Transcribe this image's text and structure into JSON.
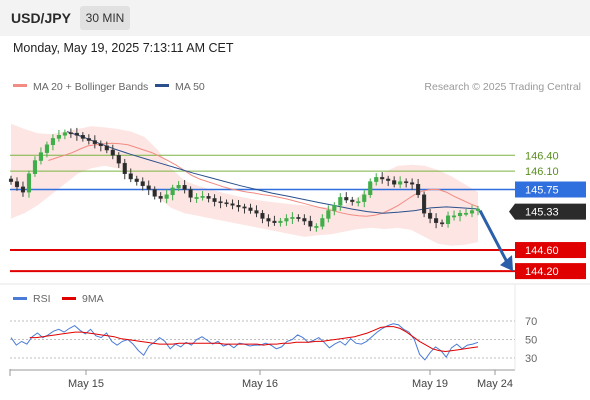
{
  "header": {
    "pair": "USD/JPY",
    "timeframe": "30 MIN",
    "datetime": "Monday, May 19, 2025 7:13:11 AM CET"
  },
  "legend": {
    "ma20_label": "MA 20 + Bollinger Bands",
    "ma50_label": "MA 50",
    "ma20_color": "#f28b82",
    "ma50_color": "#2a4f8c",
    "credit": "Research © 2025 Trading Central"
  },
  "rsi_legend": {
    "rsi_label": "RSI",
    "ma_label": "9MA",
    "rsi_color": "#4a7bd6",
    "ma_color": "#e00000"
  },
  "chart_data": {
    "type": "candlestick",
    "price_range": [
      144.05,
      147.45
    ],
    "x_labels": [
      "May 15",
      "May 16",
      "May 19",
      "May 24"
    ],
    "levels": [
      {
        "value": 146.4,
        "label": "146.40",
        "kind": "resistance",
        "color": "#7cb342"
      },
      {
        "value": 146.1,
        "label": "146.10",
        "kind": "resistance",
        "color": "#7cb342"
      },
      {
        "value": 145.75,
        "label": "145.75",
        "kind": "pivot",
        "color": "#2f6fde"
      },
      {
        "value": 144.6,
        "label": "144.60",
        "kind": "support",
        "color": "#e00000"
      },
      {
        "value": 144.2,
        "label": "144.20",
        "kind": "support",
        "color": "#e00000"
      }
    ],
    "last_price": {
      "value": 145.33,
      "label": "145.33"
    },
    "closes": [
      145.9,
      145.8,
      145.7,
      146.05,
      146.3,
      146.45,
      146.6,
      146.72,
      146.78,
      146.83,
      146.82,
      146.78,
      146.72,
      146.68,
      146.62,
      146.58,
      146.5,
      146.4,
      146.25,
      146.05,
      145.95,
      145.9,
      145.82,
      145.75,
      145.62,
      145.58,
      145.65,
      145.78,
      145.83,
      145.75,
      145.6,
      145.6,
      145.62,
      145.58,
      145.52,
      145.5,
      145.48,
      145.45,
      145.42,
      145.4,
      145.35,
      145.3,
      145.2,
      145.15,
      145.12,
      145.15,
      145.2,
      145.22,
      145.2,
      145.15,
      145.05,
      145.05,
      145.2,
      145.35,
      145.45,
      145.6,
      145.55,
      145.52,
      145.52,
      145.65,
      145.9,
      145.98,
      145.95,
      145.92,
      145.85,
      145.9,
      145.88,
      145.85,
      145.65,
      145.3,
      145.2,
      145.12,
      145.1,
      145.25,
      145.25,
      145.3,
      145.3,
      145.35,
      145.38
    ],
    "ma20": [
      146.3,
      146.35,
      146.4,
      146.45,
      146.52,
      146.58,
      146.6,
      146.62,
      146.63,
      146.62,
      146.6,
      146.55,
      146.5,
      146.45,
      146.38,
      146.3,
      146.22,
      146.12,
      146.02,
      145.95,
      145.9,
      145.85,
      145.8,
      145.76,
      145.73,
      145.7,
      145.68,
      145.65,
      145.63,
      145.6,
      145.57,
      145.53,
      145.49,
      145.45,
      145.41,
      145.38,
      145.34,
      145.3,
      145.27,
      145.25,
      145.24,
      145.26,
      145.3,
      145.37,
      145.45,
      145.55,
      145.65,
      145.72,
      145.75,
      145.75,
      145.7,
      145.62,
      145.55,
      145.48,
      145.42
    ],
    "ma20_start": 0.08,
    "ma20_end": 1.0,
    "ma50": [
      146.85,
      146.75,
      146.63,
      146.52,
      146.42,
      146.33,
      146.24,
      146.15,
      146.06,
      145.98,
      145.9,
      145.82,
      145.75,
      145.68,
      145.62,
      145.56,
      145.5,
      145.44,
      145.38,
      145.33,
      145.3,
      145.32,
      145.35,
      145.4,
      145.42,
      145.4,
      145.38
    ],
    "bb_upper": [
      147.0,
      146.9,
      146.82,
      146.8,
      146.85,
      146.9,
      146.95,
      146.93,
      146.9,
      146.85,
      146.75,
      146.5,
      146.15,
      145.92,
      145.82,
      145.75,
      145.68,
      145.62,
      145.57,
      145.53,
      145.5,
      145.47,
      145.45,
      145.42,
      145.41,
      145.45,
      145.6,
      145.85,
      146.08,
      146.2,
      146.22,
      146.2,
      146.12,
      146.0,
      145.85,
      145.7
    ],
    "bb_lower": [
      145.2,
      145.3,
      145.45,
      145.65,
      145.85,
      146.05,
      146.15,
      146.2,
      146.15,
      146.05,
      145.85,
      145.6,
      145.4,
      145.3,
      145.25,
      145.2,
      145.15,
      145.1,
      145.05,
      145.0,
      144.95,
      144.9,
      144.85,
      144.88,
      144.9,
      144.95,
      145.0,
      145.02,
      145.0,
      145.02,
      144.98,
      144.85,
      144.72,
      144.68,
      144.7,
      144.75
    ],
    "projection": {
      "from": 145.35,
      "to": 144.2
    },
    "rsi": {
      "levels": [
        70,
        50,
        30
      ],
      "range": [
        18,
        80
      ],
      "rsi_values": [
        52,
        44,
        48,
        45,
        53,
        57,
        52,
        55,
        59,
        61,
        58,
        62,
        65,
        60,
        56,
        61,
        54,
        52,
        57,
        48,
        44,
        48,
        50,
        45,
        38,
        33,
        43,
        47,
        52,
        48,
        40,
        45,
        42,
        47,
        44,
        50,
        53,
        49,
        45,
        48,
        43,
        45,
        41,
        46,
        45,
        43,
        44,
        44,
        46,
        44,
        40,
        42,
        48,
        50,
        55,
        52,
        47,
        49,
        52,
        47,
        41,
        45,
        48,
        44,
        51,
        46,
        45,
        48,
        53,
        58,
        62,
        65,
        67,
        66,
        61,
        58,
        50,
        34,
        28,
        36,
        42,
        38,
        31,
        41,
        45,
        40,
        44,
        45,
        47
      ],
      "ma_values": [
        52,
        52,
        53,
        54,
        55,
        56,
        57,
        58,
        58,
        57,
        56,
        55,
        54,
        53,
        51,
        50,
        49,
        48,
        47,
        46,
        45,
        45,
        45,
        46,
        46,
        46,
        46,
        46,
        46,
        46,
        45,
        45,
        45,
        45,
        45,
        45,
        44,
        45,
        45,
        46,
        46,
        47,
        47,
        47,
        48,
        48,
        49,
        50,
        51,
        52,
        53,
        55,
        57,
        60,
        63,
        64,
        64,
        62,
        58,
        53,
        48,
        44,
        40,
        38,
        37,
        38,
        39,
        40,
        41,
        42
      ],
      "ma_start": 0.04
    }
  },
  "xaxis": {
    "labels": [
      "May 15",
      "May 16",
      "May 19",
      "May 24"
    ]
  }
}
